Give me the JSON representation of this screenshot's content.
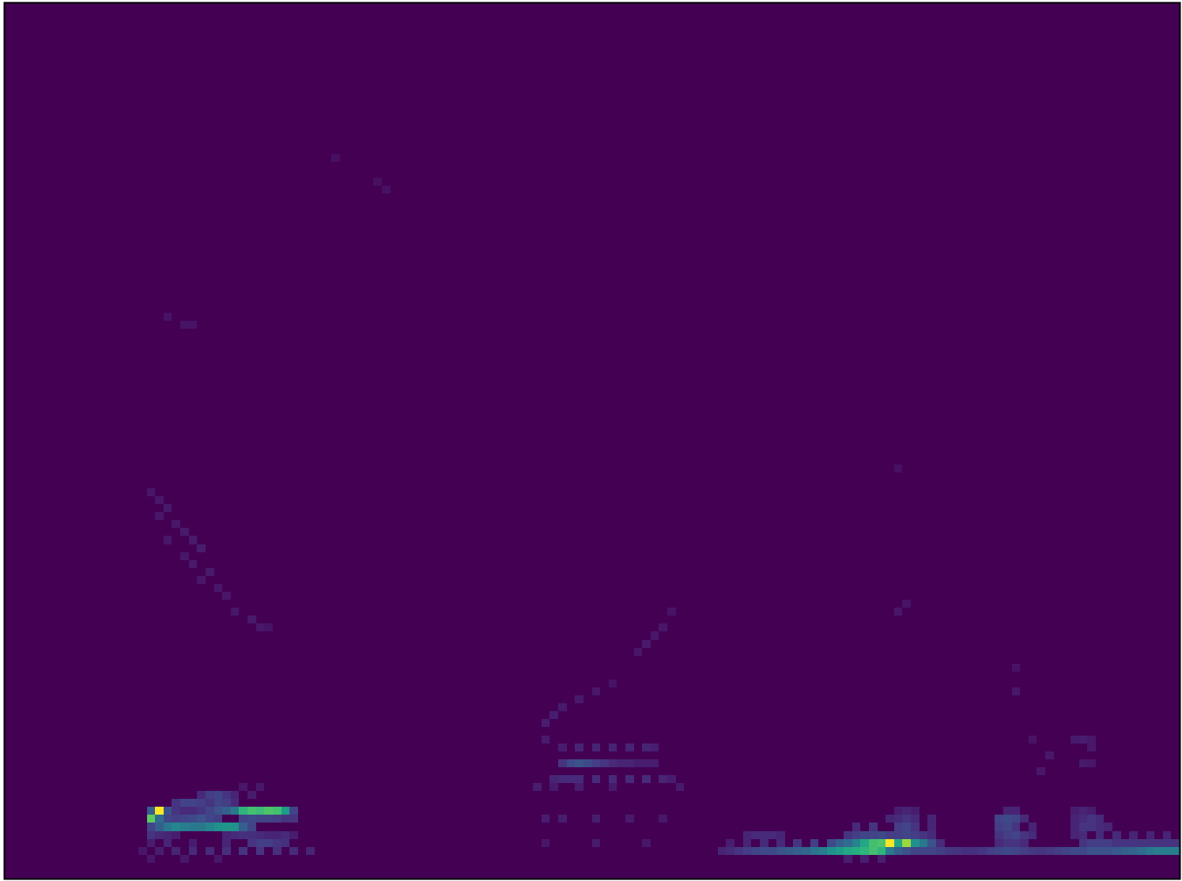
{
  "chart_data": {
    "type": "heatmap",
    "tick_labels": false,
    "xlim": [
      0,
      140
    ],
    "ylim": [
      0,
      110
    ],
    "clim": [
      0,
      1
    ],
    "cells": [
      [
        17,
        7,
        0.75
      ],
      [
        18,
        8,
        1.0
      ],
      [
        18,
        7,
        0.35
      ],
      [
        17,
        8,
        0.3
      ],
      [
        17,
        6,
        0.2
      ],
      [
        18,
        6,
        0.3
      ],
      [
        19,
        6,
        0.4
      ],
      [
        20,
        6,
        0.45
      ],
      [
        21,
        6,
        0.42
      ],
      [
        22,
        6,
        0.4
      ],
      [
        23,
        6,
        0.4
      ],
      [
        24,
        6,
        0.45
      ],
      [
        25,
        6,
        0.5
      ],
      [
        26,
        6,
        0.52
      ],
      [
        27,
        6,
        0.5
      ],
      [
        28,
        6,
        0.3
      ],
      [
        29,
        6,
        0.2
      ],
      [
        19,
        8,
        0.25
      ],
      [
        20,
        8,
        0.15
      ],
      [
        21,
        8,
        0.12
      ],
      [
        22,
        8,
        0.12
      ],
      [
        23,
        8,
        0.15
      ],
      [
        24,
        8,
        0.2
      ],
      [
        25,
        8,
        0.25
      ],
      [
        26,
        8,
        0.3
      ],
      [
        27,
        8,
        0.4
      ],
      [
        28,
        8,
        0.65
      ],
      [
        29,
        8,
        0.7
      ],
      [
        30,
        8,
        0.68
      ],
      [
        31,
        8,
        0.72
      ],
      [
        32,
        8,
        0.7
      ],
      [
        33,
        8,
        0.55
      ],
      [
        34,
        8,
        0.2
      ],
      [
        19,
        7,
        0.2
      ],
      [
        20,
        7,
        0.18
      ],
      [
        21,
        7,
        0.2
      ],
      [
        22,
        7,
        0.22
      ],
      [
        23,
        7,
        0.25
      ],
      [
        24,
        7,
        0.2
      ],
      [
        25,
        7,
        0.18
      ],
      [
        28,
        7,
        0.2
      ],
      [
        29,
        7,
        0.22
      ],
      [
        30,
        7,
        0.2
      ],
      [
        31,
        7,
        0.2
      ],
      [
        32,
        7,
        0.18
      ],
      [
        33,
        7,
        0.15
      ],
      [
        34,
        7,
        0.15
      ],
      [
        20,
        9,
        0.15
      ],
      [
        21,
        9,
        0.2
      ],
      [
        22,
        9,
        0.2
      ],
      [
        23,
        9,
        0.18
      ],
      [
        24,
        9,
        0.15
      ],
      [
        25,
        9,
        0.2
      ],
      [
        26,
        9,
        0.18
      ],
      [
        27,
        9,
        0.12
      ],
      [
        23,
        10,
        0.12
      ],
      [
        24,
        10,
        0.18
      ],
      [
        25,
        10,
        0.2
      ],
      [
        26,
        10,
        0.15
      ],
      [
        27,
        10,
        0.1
      ],
      [
        29,
        10,
        0.08
      ],
      [
        28,
        11,
        0.06
      ],
      [
        30,
        11,
        0.06
      ],
      [
        17,
        5,
        0.15
      ],
      [
        18,
        5,
        0.12
      ],
      [
        19,
        5,
        0.1
      ],
      [
        20,
        5,
        0.08
      ],
      [
        26,
        5,
        0.1
      ],
      [
        27,
        5,
        0.12
      ],
      [
        28,
        5,
        0.14
      ],
      [
        29,
        5,
        0.14
      ],
      [
        30,
        5,
        0.12
      ],
      [
        31,
        5,
        0.1
      ],
      [
        32,
        5,
        0.1
      ],
      [
        33,
        5,
        0.12
      ],
      [
        34,
        5,
        0.08
      ],
      [
        17,
        4,
        0.08
      ],
      [
        19,
        4,
        0.1
      ],
      [
        22,
        4,
        0.08
      ],
      [
        26,
        4,
        0.1
      ],
      [
        29,
        4,
        0.15
      ],
      [
        30,
        4,
        0.18
      ],
      [
        31,
        4,
        0.18
      ],
      [
        32,
        4,
        0.15
      ],
      [
        33,
        4,
        0.14
      ],
      [
        16,
        3,
        0.06
      ],
      [
        18,
        3,
        0.08
      ],
      [
        20,
        3,
        0.1
      ],
      [
        22,
        3,
        0.12
      ],
      [
        24,
        3,
        0.12
      ],
      [
        26,
        3,
        0.14
      ],
      [
        28,
        3,
        0.15
      ],
      [
        30,
        3,
        0.15
      ],
      [
        32,
        3,
        0.14
      ],
      [
        34,
        3,
        0.12
      ],
      [
        36,
        3,
        0.1
      ],
      [
        17,
        2,
        0.06
      ],
      [
        21,
        2,
        0.06
      ],
      [
        25,
        2,
        0.06
      ],
      [
        17,
        48,
        0.06
      ],
      [
        18,
        47,
        0.06
      ],
      [
        19,
        46,
        0.07
      ],
      [
        18,
        45,
        0.06
      ],
      [
        20,
        44,
        0.06
      ],
      [
        21,
        43,
        0.07
      ],
      [
        19,
        42,
        0.06
      ],
      [
        22,
        42,
        0.07
      ],
      [
        23,
        41,
        0.08
      ],
      [
        21,
        40,
        0.06
      ],
      [
        22,
        39,
        0.07
      ],
      [
        24,
        38,
        0.07
      ],
      [
        23,
        37,
        0.06
      ],
      [
        25,
        36,
        0.06
      ],
      [
        26,
        35,
        0.06
      ],
      [
        27,
        33,
        0.06
      ],
      [
        29,
        32,
        0.07
      ],
      [
        30,
        31,
        0.06
      ],
      [
        31,
        31,
        0.05
      ],
      [
        19,
        70,
        0.05
      ],
      [
        21,
        69,
        0.05
      ],
      [
        22,
        69,
        0.05
      ],
      [
        39,
        90,
        0.04
      ],
      [
        44,
        87,
        0.04
      ],
      [
        45,
        86,
        0.04
      ],
      [
        66,
        14,
        0.15
      ],
      [
        67,
        14,
        0.22
      ],
      [
        68,
        14,
        0.25
      ],
      [
        69,
        14,
        0.22
      ],
      [
        70,
        14,
        0.18
      ],
      [
        71,
        14,
        0.15
      ],
      [
        72,
        14,
        0.12
      ],
      [
        73,
        14,
        0.1
      ],
      [
        74,
        14,
        0.1
      ],
      [
        75,
        14,
        0.08
      ],
      [
        76,
        14,
        0.08
      ],
      [
        77,
        14,
        0.08
      ],
      [
        65,
        12,
        0.1
      ],
      [
        66,
        12,
        0.12
      ],
      [
        67,
        12,
        0.12
      ],
      [
        68,
        12,
        0.12
      ],
      [
        70,
        12,
        0.12
      ],
      [
        72,
        12,
        0.12
      ],
      [
        74,
        12,
        0.12
      ],
      [
        76,
        12,
        0.12
      ],
      [
        78,
        12,
        0.1
      ],
      [
        79,
        12,
        0.08
      ],
      [
        66,
        16,
        0.08
      ],
      [
        68,
        16,
        0.1
      ],
      [
        70,
        16,
        0.1
      ],
      [
        72,
        16,
        0.1
      ],
      [
        74,
        16,
        0.1
      ],
      [
        76,
        16,
        0.1
      ],
      [
        77,
        16,
        0.08
      ],
      [
        63,
        11,
        0.08
      ],
      [
        65,
        11,
        0.07
      ],
      [
        68,
        11,
        0.08
      ],
      [
        72,
        11,
        0.07
      ],
      [
        80,
        11,
        0.07
      ],
      [
        64,
        17,
        0.07
      ],
      [
        64,
        19,
        0.08
      ],
      [
        65,
        20,
        0.08
      ],
      [
        66,
        21,
        0.07
      ],
      [
        68,
        22,
        0.07
      ],
      [
        70,
        23,
        0.06
      ],
      [
        72,
        24,
        0.05
      ],
      [
        75,
        28,
        0.06
      ],
      [
        76,
        29,
        0.07
      ],
      [
        77,
        30,
        0.06
      ],
      [
        78,
        31,
        0.06
      ],
      [
        79,
        33,
        0.05
      ],
      [
        64,
        7,
        0.08
      ],
      [
        66,
        7,
        0.08
      ],
      [
        70,
        7,
        0.08
      ],
      [
        74,
        7,
        0.07
      ],
      [
        78,
        7,
        0.06
      ],
      [
        64,
        4,
        0.06
      ],
      [
        70,
        4,
        0.07
      ],
      [
        76,
        4,
        0.06
      ],
      [
        85,
        3,
        0.1
      ],
      [
        86,
        3,
        0.12
      ],
      [
        87,
        3,
        0.15
      ],
      [
        88,
        3,
        0.18
      ],
      [
        89,
        3,
        0.2
      ],
      [
        90,
        3,
        0.22
      ],
      [
        91,
        3,
        0.22
      ],
      [
        92,
        3,
        0.25
      ],
      [
        93,
        3,
        0.28
      ],
      [
        94,
        3,
        0.3
      ],
      [
        95,
        3,
        0.32
      ],
      [
        96,
        3,
        0.38
      ],
      [
        97,
        3,
        0.42
      ],
      [
        98,
        3,
        0.5
      ],
      [
        99,
        3,
        0.55
      ],
      [
        100,
        3,
        0.6
      ],
      [
        101,
        3,
        0.62
      ],
      [
        102,
        3,
        0.65
      ],
      [
        103,
        3,
        0.7
      ],
      [
        104,
        3,
        0.65
      ],
      [
        105,
        3,
        0.4
      ],
      [
        106,
        3,
        0.3
      ],
      [
        107,
        3,
        0.25
      ],
      [
        108,
        3,
        0.2
      ],
      [
        109,
        3,
        0.2
      ],
      [
        110,
        3,
        0.2
      ],
      [
        111,
        3,
        0.18
      ],
      [
        112,
        3,
        0.16
      ],
      [
        113,
        3,
        0.15
      ],
      [
        114,
        3,
        0.14
      ],
      [
        115,
        3,
        0.14
      ],
      [
        116,
        3,
        0.15
      ],
      [
        117,
        3,
        0.18
      ],
      [
        118,
        3,
        0.2
      ],
      [
        119,
        3,
        0.22
      ],
      [
        120,
        3,
        0.2
      ],
      [
        121,
        3,
        0.18
      ],
      [
        122,
        3,
        0.16
      ],
      [
        123,
        3,
        0.15
      ],
      [
        124,
        3,
        0.16
      ],
      [
        125,
        3,
        0.18
      ],
      [
        126,
        3,
        0.2
      ],
      [
        127,
        3,
        0.22
      ],
      [
        128,
        3,
        0.22
      ],
      [
        129,
        3,
        0.25
      ],
      [
        130,
        3,
        0.25
      ],
      [
        131,
        3,
        0.25
      ],
      [
        132,
        3,
        0.28
      ],
      [
        133,
        3,
        0.3
      ],
      [
        134,
        3,
        0.32
      ],
      [
        135,
        3,
        0.35
      ],
      [
        136,
        3,
        0.4
      ],
      [
        137,
        3,
        0.42
      ],
      [
        138,
        3,
        0.42
      ],
      [
        139,
        3,
        0.42
      ],
      [
        86,
        4,
        0.08
      ],
      [
        88,
        4,
        0.1
      ],
      [
        90,
        4,
        0.12
      ],
      [
        92,
        4,
        0.12
      ],
      [
        94,
        4,
        0.15
      ],
      [
        96,
        4,
        0.18
      ],
      [
        98,
        4,
        0.22
      ],
      [
        99,
        4,
        0.3
      ],
      [
        100,
        4,
        0.35
      ],
      [
        101,
        4,
        0.45
      ],
      [
        102,
        4,
        0.6
      ],
      [
        103,
        4,
        0.7
      ],
      [
        104,
        4,
        0.72
      ],
      [
        105,
        4,
        1.0
      ],
      [
        106,
        4,
        0.6
      ],
      [
        107,
        4,
        0.85
      ],
      [
        108,
        4,
        0.5
      ],
      [
        109,
        4,
        0.4
      ],
      [
        110,
        4,
        0.25
      ],
      [
        111,
        4,
        0.12
      ],
      [
        118,
        4,
        0.12
      ],
      [
        119,
        4,
        0.15
      ],
      [
        120,
        4,
        0.15
      ],
      [
        121,
        4,
        0.12
      ],
      [
        128,
        4,
        0.15
      ],
      [
        129,
        4,
        0.18
      ],
      [
        130,
        4,
        0.18
      ],
      [
        131,
        4,
        0.18
      ],
      [
        132,
        4,
        0.15
      ],
      [
        133,
        4,
        0.15
      ],
      [
        134,
        4,
        0.15
      ],
      [
        135,
        4,
        0.15
      ],
      [
        136,
        4,
        0.15
      ],
      [
        137,
        4,
        0.15
      ],
      [
        138,
        4,
        0.15
      ],
      [
        139,
        4,
        0.15
      ],
      [
        88,
        5,
        0.1
      ],
      [
        89,
        5,
        0.12
      ],
      [
        90,
        5,
        0.12
      ],
      [
        91,
        5,
        0.12
      ],
      [
        92,
        5,
        0.1
      ],
      [
        100,
        5,
        0.15
      ],
      [
        101,
        5,
        0.18
      ],
      [
        102,
        5,
        0.2
      ],
      [
        103,
        5,
        0.2
      ],
      [
        104,
        5,
        0.22
      ],
      [
        105,
        5,
        0.18
      ],
      [
        106,
        5,
        0.18
      ],
      [
        107,
        5,
        0.2
      ],
      [
        108,
        5,
        0.18
      ],
      [
        109,
        5,
        0.15
      ],
      [
        110,
        5,
        0.12
      ],
      [
        118,
        5,
        0.15
      ],
      [
        119,
        5,
        0.18
      ],
      [
        120,
        5,
        0.2
      ],
      [
        121,
        5,
        0.15
      ],
      [
        122,
        5,
        0.12
      ],
      [
        127,
        5,
        0.1
      ],
      [
        128,
        5,
        0.12
      ],
      [
        130,
        5,
        0.12
      ],
      [
        132,
        5,
        0.12
      ],
      [
        134,
        5,
        0.1
      ],
      [
        136,
        5,
        0.1
      ],
      [
        138,
        5,
        0.1
      ],
      [
        101,
        6,
        0.12
      ],
      [
        103,
        6,
        0.15
      ],
      [
        106,
        6,
        0.18
      ],
      [
        107,
        6,
        0.2
      ],
      [
        108,
        6,
        0.15
      ],
      [
        110,
        6,
        0.1
      ],
      [
        118,
        6,
        0.18
      ],
      [
        119,
        6,
        0.2
      ],
      [
        120,
        6,
        0.15
      ],
      [
        122,
        6,
        0.1
      ],
      [
        127,
        6,
        0.1
      ],
      [
        128,
        6,
        0.15
      ],
      [
        129,
        6,
        0.15
      ],
      [
        130,
        6,
        0.12
      ],
      [
        131,
        6,
        0.1
      ],
      [
        105,
        7,
        0.1
      ],
      [
        106,
        7,
        0.12
      ],
      [
        107,
        7,
        0.15
      ],
      [
        108,
        7,
        0.12
      ],
      [
        110,
        7,
        0.1
      ],
      [
        118,
        7,
        0.2
      ],
      [
        119,
        7,
        0.22
      ],
      [
        120,
        7,
        0.2
      ],
      [
        121,
        7,
        0.12
      ],
      [
        127,
        7,
        0.1
      ],
      [
        128,
        7,
        0.12
      ],
      [
        129,
        7,
        0.15
      ],
      [
        130,
        7,
        0.12
      ],
      [
        106,
        8,
        0.08
      ],
      [
        107,
        8,
        0.1
      ],
      [
        108,
        8,
        0.08
      ],
      [
        119,
        8,
        0.1
      ],
      [
        120,
        8,
        0.1
      ],
      [
        127,
        8,
        0.08
      ],
      [
        128,
        8,
        0.1
      ],
      [
        129,
        8,
        0.08
      ],
      [
        100,
        2,
        0.08
      ],
      [
        102,
        2,
        0.08
      ],
      [
        104,
        2,
        0.08
      ],
      [
        127,
        17,
        0.07
      ],
      [
        128,
        17,
        0.08
      ],
      [
        129,
        17,
        0.06
      ],
      [
        123,
        13,
        0.06
      ],
      [
        122,
        17,
        0.05
      ],
      [
        106,
        33,
        0.06
      ],
      [
        107,
        34,
        0.05
      ],
      [
        120,
        26,
        0.05
      ],
      [
        120,
        23,
        0.06
      ],
      [
        106,
        51,
        0.04
      ],
      [
        124,
        15,
        0.06
      ],
      [
        129,
        16,
        0.06
      ],
      [
        128,
        14,
        0.07
      ],
      [
        129,
        14,
        0.06
      ]
    ]
  }
}
